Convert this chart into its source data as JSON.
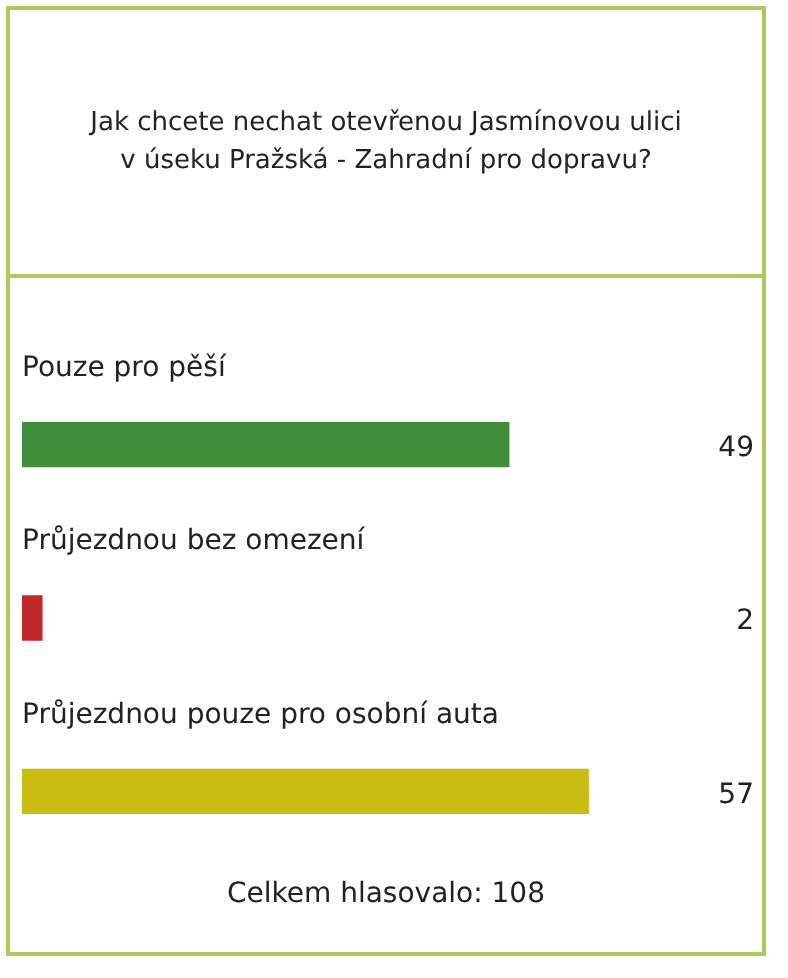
{
  "chart_data": {
    "type": "bar",
    "orientation": "horizontal",
    "title": "Jak chcete nechat otevřenou Jasmínovou ulici v úseku Pražská - Zahradní pro dopravu?",
    "categories": [
      "Pouze pro pěší",
      "Průjezdnou bez omezení",
      "Průjezdnou pouze pro osobní auta"
    ],
    "values": [
      49,
      2,
      57
    ],
    "colors": [
      "#3f8f3a",
      "#c0282a",
      "#c8bd10"
    ],
    "data_labels": true,
    "legend": false,
    "annotations": [
      "Celkem hlasovalo: 108"
    ]
  }
}
